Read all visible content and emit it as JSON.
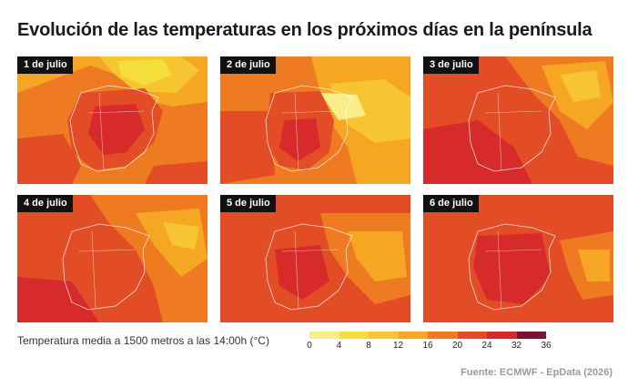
{
  "title": "Evolución de las temperaturas en los próximos días en la península",
  "maps": [
    {
      "label": "1 de julio"
    },
    {
      "label": "2 de julio"
    },
    {
      "label": "3 de julio"
    },
    {
      "label": "4 de julio"
    },
    {
      "label": "5 de julio"
    },
    {
      "label": "6 de julio"
    }
  ],
  "legend": {
    "caption": "Temperatura media a 1500 metros a las 14:00h (°C)",
    "ticks": [
      "0",
      "4",
      "8",
      "12",
      "16",
      "20",
      "24",
      "32",
      "36"
    ],
    "colors": [
      "#f7ee8a",
      "#f5dd3a",
      "#f7c531",
      "#f5a623",
      "#ee7a22",
      "#e34d26",
      "#d72b2b",
      "#7a1233"
    ]
  },
  "source": "Fuente: ECMWF - EpData (2026)"
}
